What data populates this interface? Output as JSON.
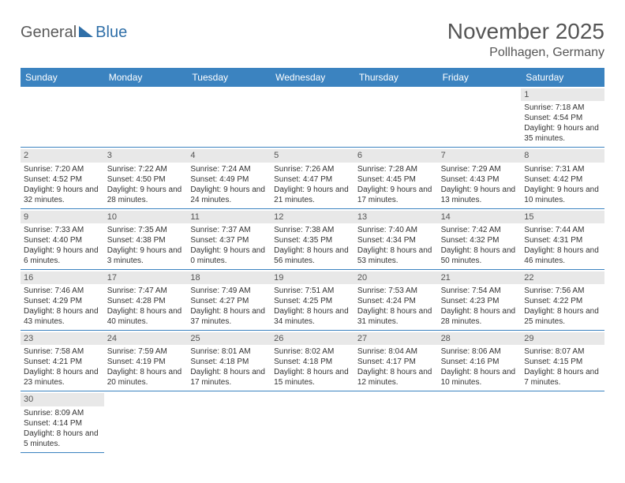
{
  "logo": {
    "general": "General",
    "blue": "Blue"
  },
  "title": "November 2025",
  "location": "Pollhagen, Germany",
  "weekdays": [
    "Sunday",
    "Monday",
    "Tuesday",
    "Wednesday",
    "Thursday",
    "Friday",
    "Saturday"
  ],
  "styles": {
    "header_bg": "#3b83c0",
    "header_text": "#ffffff",
    "daynum_bg": "#e8e8e8",
    "border": "#3b83c0",
    "body_text": "#333333",
    "title_color": "#555555",
    "font_family": "Arial",
    "month_fontsize": 28,
    "location_fontsize": 16,
    "weekday_fontsize": 12,
    "cell_fontsize": 10
  },
  "leading_blanks": 6,
  "days": [
    {
      "n": 1,
      "sunrise": "7:18 AM",
      "sunset": "4:54 PM",
      "daylight": "9 hours and 35 minutes."
    },
    {
      "n": 2,
      "sunrise": "7:20 AM",
      "sunset": "4:52 PM",
      "daylight": "9 hours and 32 minutes."
    },
    {
      "n": 3,
      "sunrise": "7:22 AM",
      "sunset": "4:50 PM",
      "daylight": "9 hours and 28 minutes."
    },
    {
      "n": 4,
      "sunrise": "7:24 AM",
      "sunset": "4:49 PM",
      "daylight": "9 hours and 24 minutes."
    },
    {
      "n": 5,
      "sunrise": "7:26 AM",
      "sunset": "4:47 PM",
      "daylight": "9 hours and 21 minutes."
    },
    {
      "n": 6,
      "sunrise": "7:28 AM",
      "sunset": "4:45 PM",
      "daylight": "9 hours and 17 minutes."
    },
    {
      "n": 7,
      "sunrise": "7:29 AM",
      "sunset": "4:43 PM",
      "daylight": "9 hours and 13 minutes."
    },
    {
      "n": 8,
      "sunrise": "7:31 AM",
      "sunset": "4:42 PM",
      "daylight": "9 hours and 10 minutes."
    },
    {
      "n": 9,
      "sunrise": "7:33 AM",
      "sunset": "4:40 PM",
      "daylight": "9 hours and 6 minutes."
    },
    {
      "n": 10,
      "sunrise": "7:35 AM",
      "sunset": "4:38 PM",
      "daylight": "9 hours and 3 minutes."
    },
    {
      "n": 11,
      "sunrise": "7:37 AM",
      "sunset": "4:37 PM",
      "daylight": "9 hours and 0 minutes."
    },
    {
      "n": 12,
      "sunrise": "7:38 AM",
      "sunset": "4:35 PM",
      "daylight": "8 hours and 56 minutes."
    },
    {
      "n": 13,
      "sunrise": "7:40 AM",
      "sunset": "4:34 PM",
      "daylight": "8 hours and 53 minutes."
    },
    {
      "n": 14,
      "sunrise": "7:42 AM",
      "sunset": "4:32 PM",
      "daylight": "8 hours and 50 minutes."
    },
    {
      "n": 15,
      "sunrise": "7:44 AM",
      "sunset": "4:31 PM",
      "daylight": "8 hours and 46 minutes."
    },
    {
      "n": 16,
      "sunrise": "7:46 AM",
      "sunset": "4:29 PM",
      "daylight": "8 hours and 43 minutes."
    },
    {
      "n": 17,
      "sunrise": "7:47 AM",
      "sunset": "4:28 PM",
      "daylight": "8 hours and 40 minutes."
    },
    {
      "n": 18,
      "sunrise": "7:49 AM",
      "sunset": "4:27 PM",
      "daylight": "8 hours and 37 minutes."
    },
    {
      "n": 19,
      "sunrise": "7:51 AM",
      "sunset": "4:25 PM",
      "daylight": "8 hours and 34 minutes."
    },
    {
      "n": 20,
      "sunrise": "7:53 AM",
      "sunset": "4:24 PM",
      "daylight": "8 hours and 31 minutes."
    },
    {
      "n": 21,
      "sunrise": "7:54 AM",
      "sunset": "4:23 PM",
      "daylight": "8 hours and 28 minutes."
    },
    {
      "n": 22,
      "sunrise": "7:56 AM",
      "sunset": "4:22 PM",
      "daylight": "8 hours and 25 minutes."
    },
    {
      "n": 23,
      "sunrise": "7:58 AM",
      "sunset": "4:21 PM",
      "daylight": "8 hours and 23 minutes."
    },
    {
      "n": 24,
      "sunrise": "7:59 AM",
      "sunset": "4:19 PM",
      "daylight": "8 hours and 20 minutes."
    },
    {
      "n": 25,
      "sunrise": "8:01 AM",
      "sunset": "4:18 PM",
      "daylight": "8 hours and 17 minutes."
    },
    {
      "n": 26,
      "sunrise": "8:02 AM",
      "sunset": "4:18 PM",
      "daylight": "8 hours and 15 minutes."
    },
    {
      "n": 27,
      "sunrise": "8:04 AM",
      "sunset": "4:17 PM",
      "daylight": "8 hours and 12 minutes."
    },
    {
      "n": 28,
      "sunrise": "8:06 AM",
      "sunset": "4:16 PM",
      "daylight": "8 hours and 10 minutes."
    },
    {
      "n": 29,
      "sunrise": "8:07 AM",
      "sunset": "4:15 PM",
      "daylight": "8 hours and 7 minutes."
    },
    {
      "n": 30,
      "sunrise": "8:09 AM",
      "sunset": "4:14 PM",
      "daylight": "8 hours and 5 minutes."
    }
  ]
}
